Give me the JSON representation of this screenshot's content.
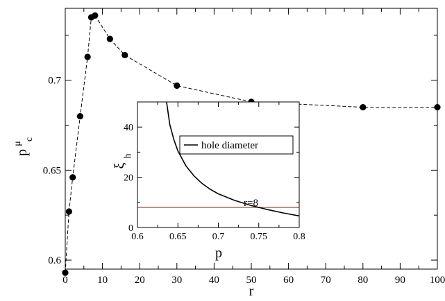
{
  "chart_data": [
    {
      "type": "line",
      "xlabel": "r",
      "ylabel_main": "p",
      "ylabel_superscript": "μ",
      "ylabel_subscript": "c",
      "xlim": [
        0,
        100
      ],
      "ylim": [
        0.595,
        0.74
      ],
      "xticks": [
        0,
        10,
        20,
        30,
        40,
        50,
        60,
        70,
        80,
        90,
        100
      ],
      "xtick_labels": [
        "0",
        "10",
        "20",
        "30",
        "40",
        "50",
        "60",
        "70",
        "80",
        "90",
        "100"
      ],
      "yticks": [
        0.6,
        0.65,
        0.7
      ],
      "ytick_labels": [
        "0.6",
        "0.65",
        "0.7"
      ],
      "series": [
        {
          "style": "dashed line with filled circle markers",
          "color": "#000000",
          "x": [
            0,
            1,
            2,
            4,
            6,
            7,
            8,
            12,
            16,
            30,
            50,
            80,
            100
          ],
          "y": [
            0.593,
            0.627,
            0.646,
            0.68,
            0.713,
            0.735,
            0.736,
            0.723,
            0.714,
            0.697,
            0.688,
            0.685,
            0.685
          ]
        }
      ]
    },
    {
      "type": "line",
      "xlabel": "p",
      "ylabel_main": "ξ",
      "ylabel_subscript": "h",
      "xlim": [
        0.6,
        0.8
      ],
      "ylim": [
        0,
        50
      ],
      "xticks": [
        0.6,
        0.65,
        0.7,
        0.75,
        0.8
      ],
      "xtick_labels": [
        "0.6",
        "0.65",
        "0.7",
        "0.75",
        "0.8"
      ],
      "yticks": [
        0,
        20,
        40
      ],
      "ytick_labels": [
        "0",
        "20",
        "40"
      ],
      "legend": {
        "position": "upper-right",
        "entries": [
          "hole diameter"
        ]
      },
      "annotation": "r=8",
      "series": [
        {
          "name": "hole diameter",
          "color": "#000000",
          "x": [
            0.636,
            0.64,
            0.645,
            0.65,
            0.66,
            0.67,
            0.68,
            0.69,
            0.7,
            0.72,
            0.74,
            0.76,
            0.78,
            0.8
          ],
          "y": [
            50,
            41,
            35,
            30.5,
            24.5,
            20.5,
            17.5,
            15.2,
            13.4,
            10.8,
            8.8,
            7.2,
            5.8,
            4.6
          ]
        },
        {
          "style": "horizontal line",
          "color": "#e8473a",
          "x": [
            0.6,
            0.8
          ],
          "y": [
            8,
            8
          ]
        }
      ]
    }
  ]
}
